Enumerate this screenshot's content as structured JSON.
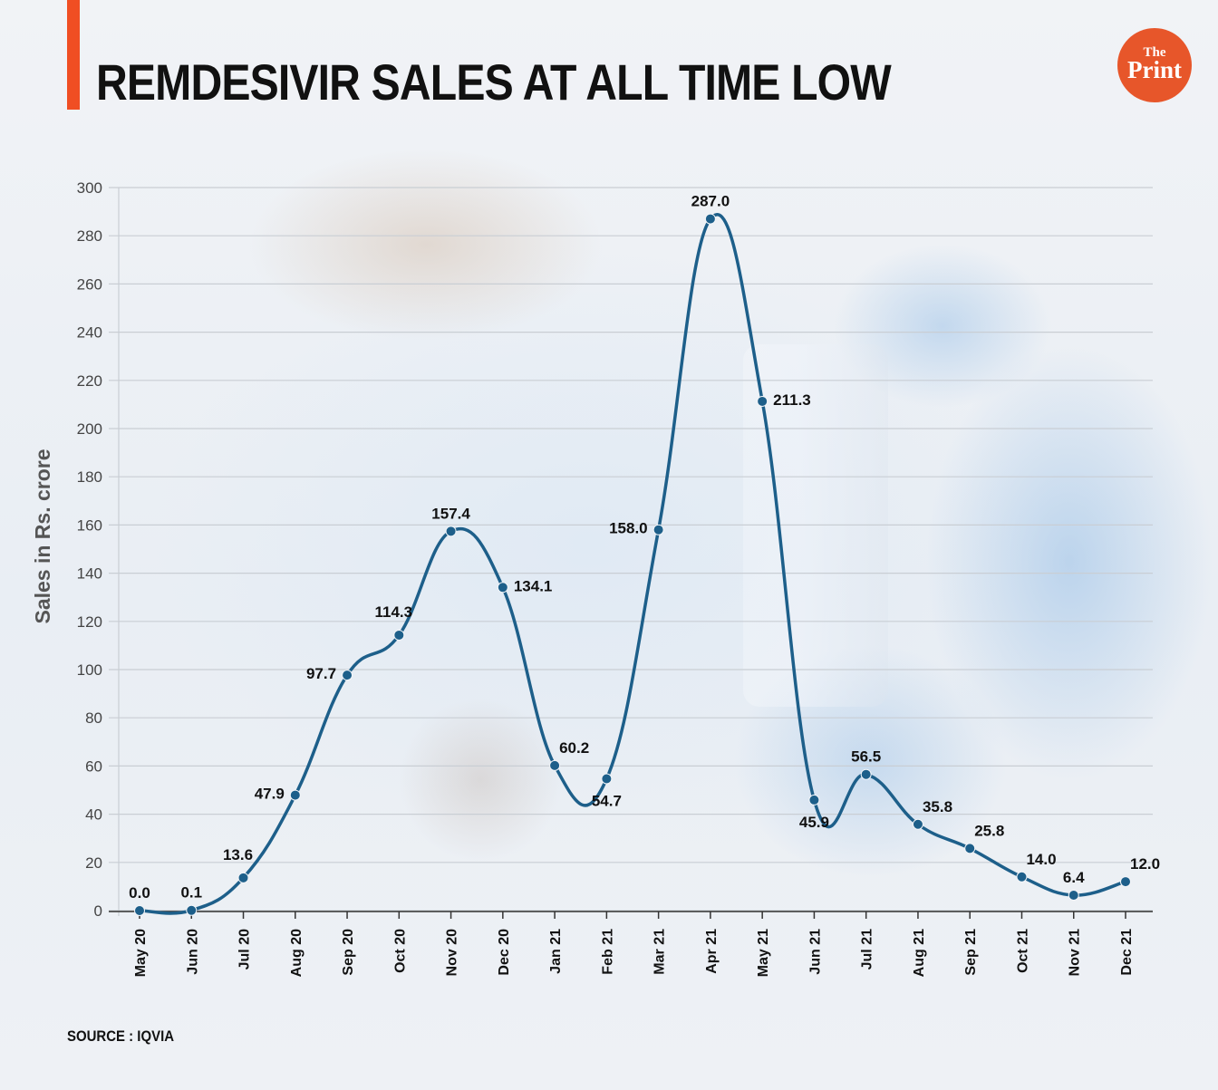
{
  "header": {
    "title": "REMDESIVIR SALES AT ALL TIME LOW",
    "logo_the": "The",
    "logo_print": "Print"
  },
  "footer": {
    "source": "SOURCE : IQVIA"
  },
  "colors": {
    "line": "#1d5f8a",
    "accent": "#f04e23",
    "logo": "#e7562a"
  },
  "chart_data": {
    "type": "line",
    "title": "REMDESIVIR SALES AT ALL TIME LOW",
    "xlabel": "",
    "ylabel": "Sales in Rs. crore",
    "ylim": [
      0,
      300
    ],
    "yticks": [
      0,
      20,
      40,
      60,
      80,
      100,
      120,
      140,
      160,
      180,
      200,
      220,
      240,
      260,
      280,
      300
    ],
    "grid": true,
    "categories": [
      "May 20",
      "Jun 20",
      "Jul 20",
      "Aug 20",
      "Sep 20",
      "Oct 20",
      "Nov 20",
      "Dec 20",
      "Jan 21",
      "Feb 21",
      "Mar 21",
      "Apr 21",
      "May 21",
      "Jun 21",
      "Jul 21",
      "Aug 21",
      "Sep 21",
      "Oct 21",
      "Nov 21",
      "Dec 21"
    ],
    "series": [
      {
        "name": "Sales in Rs. crore",
        "values": [
          0.0,
          0.1,
          13.6,
          47.9,
          97.7,
          114.3,
          157.4,
          134.1,
          60.2,
          54.7,
          158.0,
          287.0,
          211.3,
          45.9,
          56.5,
          35.8,
          25.8,
          14.0,
          6.4,
          12.0
        ],
        "labels": [
          "0.0",
          "0.1",
          "13.6",
          "47.9",
          "97.7",
          "114.3",
          "157.4",
          "134.1",
          "60.2",
          "54.7",
          "158.0",
          "287.0",
          "211.3",
          "45.9",
          "56.5",
          "35.8",
          "25.8",
          "14.0",
          "6.4",
          "12.0"
        ],
        "label_positions": [
          "above",
          "above",
          "above-left",
          "left",
          "left",
          "above-left",
          "above",
          "right",
          "above-right",
          "below",
          "left",
          "above",
          "right",
          "below",
          "above",
          "above-right",
          "above-right",
          "above-right",
          "above",
          "above-right"
        ]
      }
    ]
  }
}
